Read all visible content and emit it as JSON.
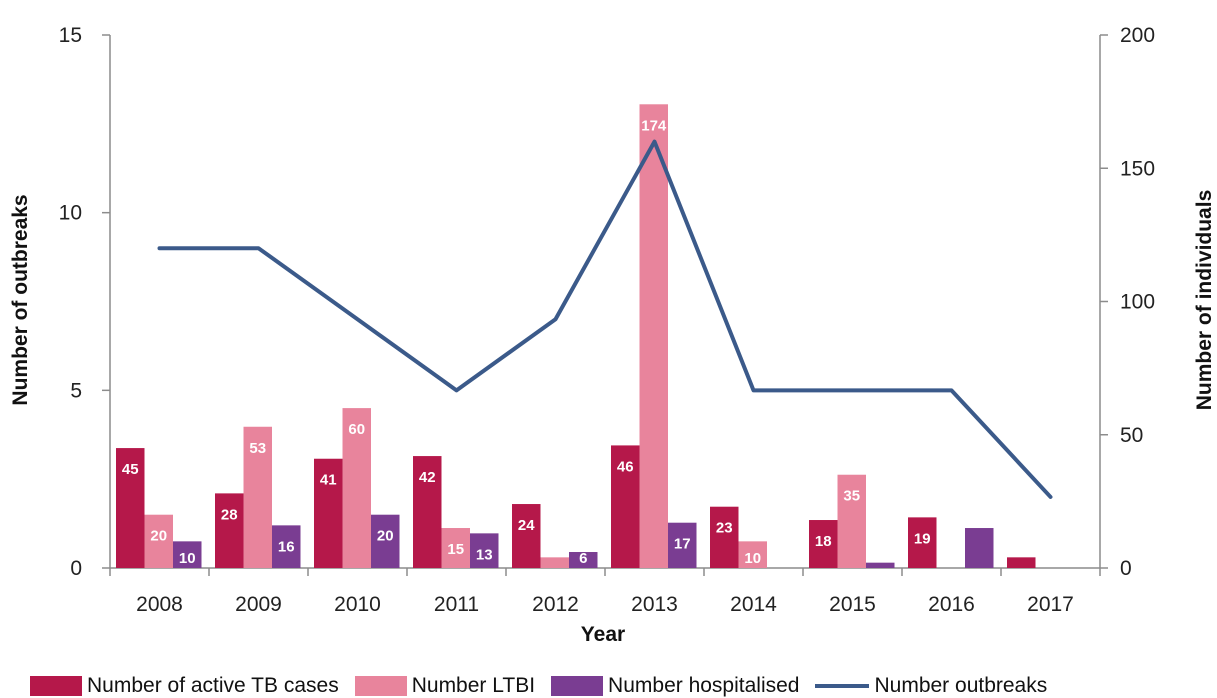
{
  "chart_data": {
    "type": "bar",
    "categories": [
      "2008",
      "2009",
      "2010",
      "2011",
      "2012",
      "2013",
      "2014",
      "2015",
      "2016",
      "2017"
    ],
    "xlabel": "Year",
    "ylabel_left": "Number of outbreaks",
    "ylabel_right": "Number of individuals",
    "ylim_left": [
      0,
      15
    ],
    "ylim_right": [
      0,
      200
    ],
    "yticks_left": [
      0,
      5,
      10,
      15
    ],
    "yticks_right": [
      0,
      50,
      100,
      150,
      200
    ],
    "grid": false,
    "legend_position": "bottom",
    "series": [
      {
        "name": "Number of active TB cases",
        "axis": "right",
        "color": "#b5184a",
        "values": [
          45,
          28,
          41,
          42,
          24,
          46,
          23,
          18,
          19,
          4
        ],
        "labels": [
          "45",
          "28",
          "41",
          "42",
          "24",
          "46",
          "23",
          "18",
          "19",
          ""
        ]
      },
      {
        "name": "Number LTBI",
        "axis": "right",
        "color": "#e8849c",
        "values": [
          20,
          53,
          60,
          15,
          4,
          174,
          10,
          35,
          0,
          0
        ],
        "labels": [
          "20",
          "53",
          "60",
          "15",
          "",
          "174",
          "10",
          "35",
          "",
          ""
        ]
      },
      {
        "name": "Number hospitalised",
        "axis": "right",
        "color": "#7a3d92",
        "values": [
          10,
          16,
          20,
          13,
          6,
          17,
          0,
          2,
          15,
          0
        ],
        "labels": [
          "10",
          "16",
          "20",
          "13",
          "6",
          "17",
          "",
          "",
          "",
          ""
        ]
      }
    ],
    "line": {
      "name": "Number outbreaks",
      "axis": "left",
      "color": "#3b5a8a",
      "values": [
        9,
        9,
        7,
        5,
        7,
        12,
        5,
        5,
        5,
        2
      ]
    }
  }
}
